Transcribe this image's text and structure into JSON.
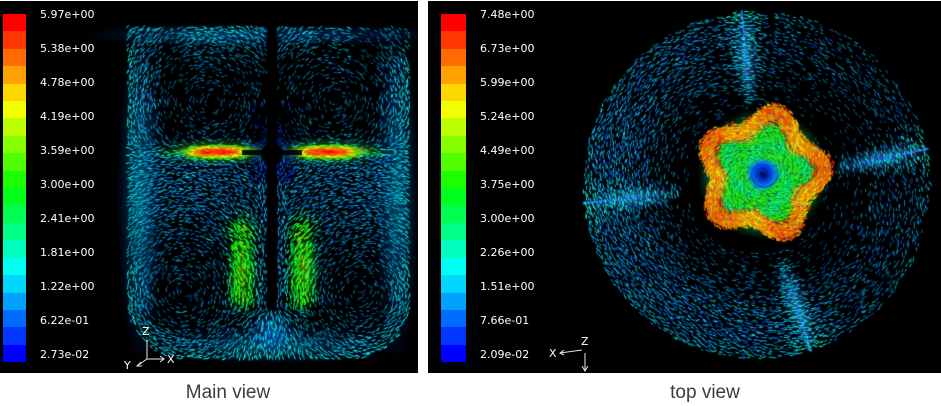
{
  "figure": {
    "page_bg": "#ffffff",
    "panel_bg": "#000000",
    "tick_text_color": "#ffffff",
    "caption_text_color": "#3c3c3c"
  },
  "views": [
    {
      "caption": "Main view",
      "colorbar": {
        "bands": 20,
        "max": 5.97,
        "min": 0.0273,
        "tick_labels": [
          "5.97e+00",
          "5.38e+00",
          "4.78e+00",
          "4.19e+00",
          "3.59e+00",
          "3.00e+00",
          "2.41e+00",
          "1.81e+00",
          "1.22e+00",
          "6.22e-01",
          "2.73e-02"
        ]
      },
      "triad": {
        "up": "Z",
        "right": "X",
        "oblique": "Y"
      }
    },
    {
      "caption": "top view",
      "colorbar": {
        "bands": 20,
        "max": 7.48,
        "min": 0.0209,
        "tick_labels": [
          "7.48e+00",
          "6.73e+00",
          "5.99e+00",
          "5.24e+00",
          "4.49e+00",
          "3.75e+00",
          "3.00e+00",
          "2.26e+00",
          "1.51e+00",
          "7.66e-01",
          "2.09e-02"
        ]
      },
      "triad": {
        "left": "X",
        "origin": "Z"
      }
    }
  ],
  "chart_data": [
    {
      "type": "vector-field",
      "title": "Main view",
      "description": "velocity vector plot, side view of a baffled stirred tank with central shaft and radial impeller jet",
      "colormap": "rainbow 20-band, red = max, blue = min",
      "legend_position": "left",
      "colorbar_ticks": [
        5.97,
        5.38,
        4.78,
        4.19,
        3.59,
        3.0,
        2.41,
        1.81,
        1.22,
        0.622,
        0.0273
      ],
      "range": [
        0.0273,
        5.97
      ],
      "axis_triad": [
        "Z up",
        "X right",
        "Y oblique"
      ]
    },
    {
      "type": "vector-field",
      "title": "top view",
      "description": "velocity vector plot, top view of the same stirred tank: swirling outer flow, 4 baffle wakes, green/orange impeller region with blue vortex core",
      "colormap": "rainbow 20-band, red = max, blue = min",
      "legend_position": "left",
      "colorbar_ticks": [
        7.48,
        6.73,
        5.99,
        5.24,
        4.49,
        3.75,
        3.0,
        2.26,
        1.51,
        0.766,
        0.0209
      ],
      "range": [
        0.0209,
        7.48
      ],
      "axis_triad": [
        "X left",
        "Z at origin, arrow down"
      ]
    }
  ]
}
